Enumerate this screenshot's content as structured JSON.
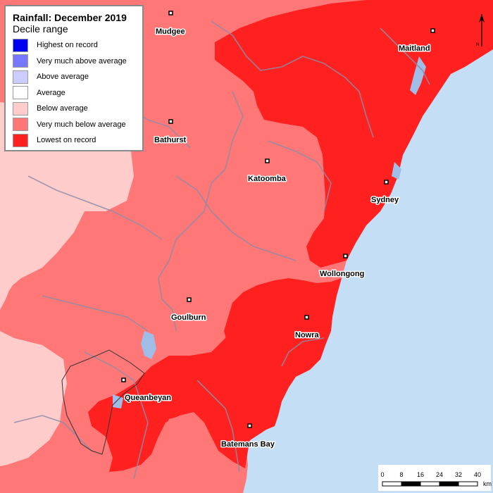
{
  "legend": {
    "title": "Rainfall: December 2019",
    "subtitle": "Decile range",
    "items": [
      {
        "label": "Highest on record",
        "color": "#0000ee"
      },
      {
        "label": "Very much above average",
        "color": "#7777ff"
      },
      {
        "label": "Above average",
        "color": "#ccccff"
      },
      {
        "label": "Average",
        "color": "#ffffff"
      },
      {
        "label": "Below average",
        "color": "#ffcccc"
      },
      {
        "label": "Very much below average",
        "color": "#ff7777"
      },
      {
        "label": "Lowest on record",
        "color": "#ff2020"
      }
    ]
  },
  "cities": [
    {
      "name": "Mudgee"
    },
    {
      "name": "Maitland"
    },
    {
      "name": "Bathurst"
    },
    {
      "name": "Katoomba"
    },
    {
      "name": "Sydney"
    },
    {
      "name": "Wollongong"
    },
    {
      "name": "Goulburn"
    },
    {
      "name": "Nowra"
    },
    {
      "name": "Queanbeyan"
    },
    {
      "name": "Batemans Bay"
    }
  ],
  "scale_bar": {
    "ticks": [
      "0",
      "8",
      "16",
      "24",
      "32",
      "40"
    ],
    "unit": "km"
  },
  "north_label": "N",
  "colors": {
    "ocean": "#c3def5",
    "below_average": "#ffcccc",
    "very_much_below_average": "#ff7777",
    "lowest_on_record": "#ff2020"
  }
}
